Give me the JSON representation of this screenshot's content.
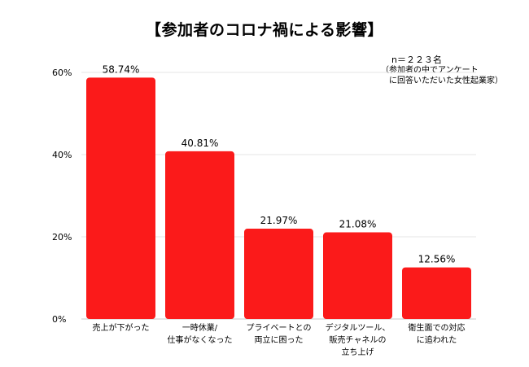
{
  "header": {
    "title": "【参加者のコロナ禍による影響】",
    "note_count": "n＝２２３名",
    "note_detail": "（参加者の中でアンケート\n　に回答いただいた女性起業家）"
  },
  "colors": {
    "bar": "#fb1a1a",
    "grid": "#e6e6e6",
    "axis": "#c8c8c8"
  },
  "chart_data": {
    "type": "bar",
    "title": "【参加者のコロナ禍による影響】",
    "xlabel": "",
    "ylabel": "",
    "ylim": [
      0,
      60
    ],
    "yticks": [
      0,
      20,
      40,
      60
    ],
    "ytick_labels": [
      "0%",
      "20%",
      "40%",
      "60%"
    ],
    "categories": [
      [
        "売上が下がった"
      ],
      [
        "一時休業/",
        "仕事がなくなった"
      ],
      [
        "プライベートとの",
        "両立に困った"
      ],
      [
        "デジタルツール、",
        "販売チャネルの",
        "立ち上げ"
      ],
      [
        "衛生面での対応",
        "に追われた"
      ]
    ],
    "values": [
      58.74,
      40.81,
      21.97,
      21.08,
      12.56
    ],
    "data_labels": [
      "58.74%",
      "40.81%",
      "21.97%",
      "21.08%",
      "12.56%"
    ],
    "grid": true,
    "legend": "none"
  }
}
